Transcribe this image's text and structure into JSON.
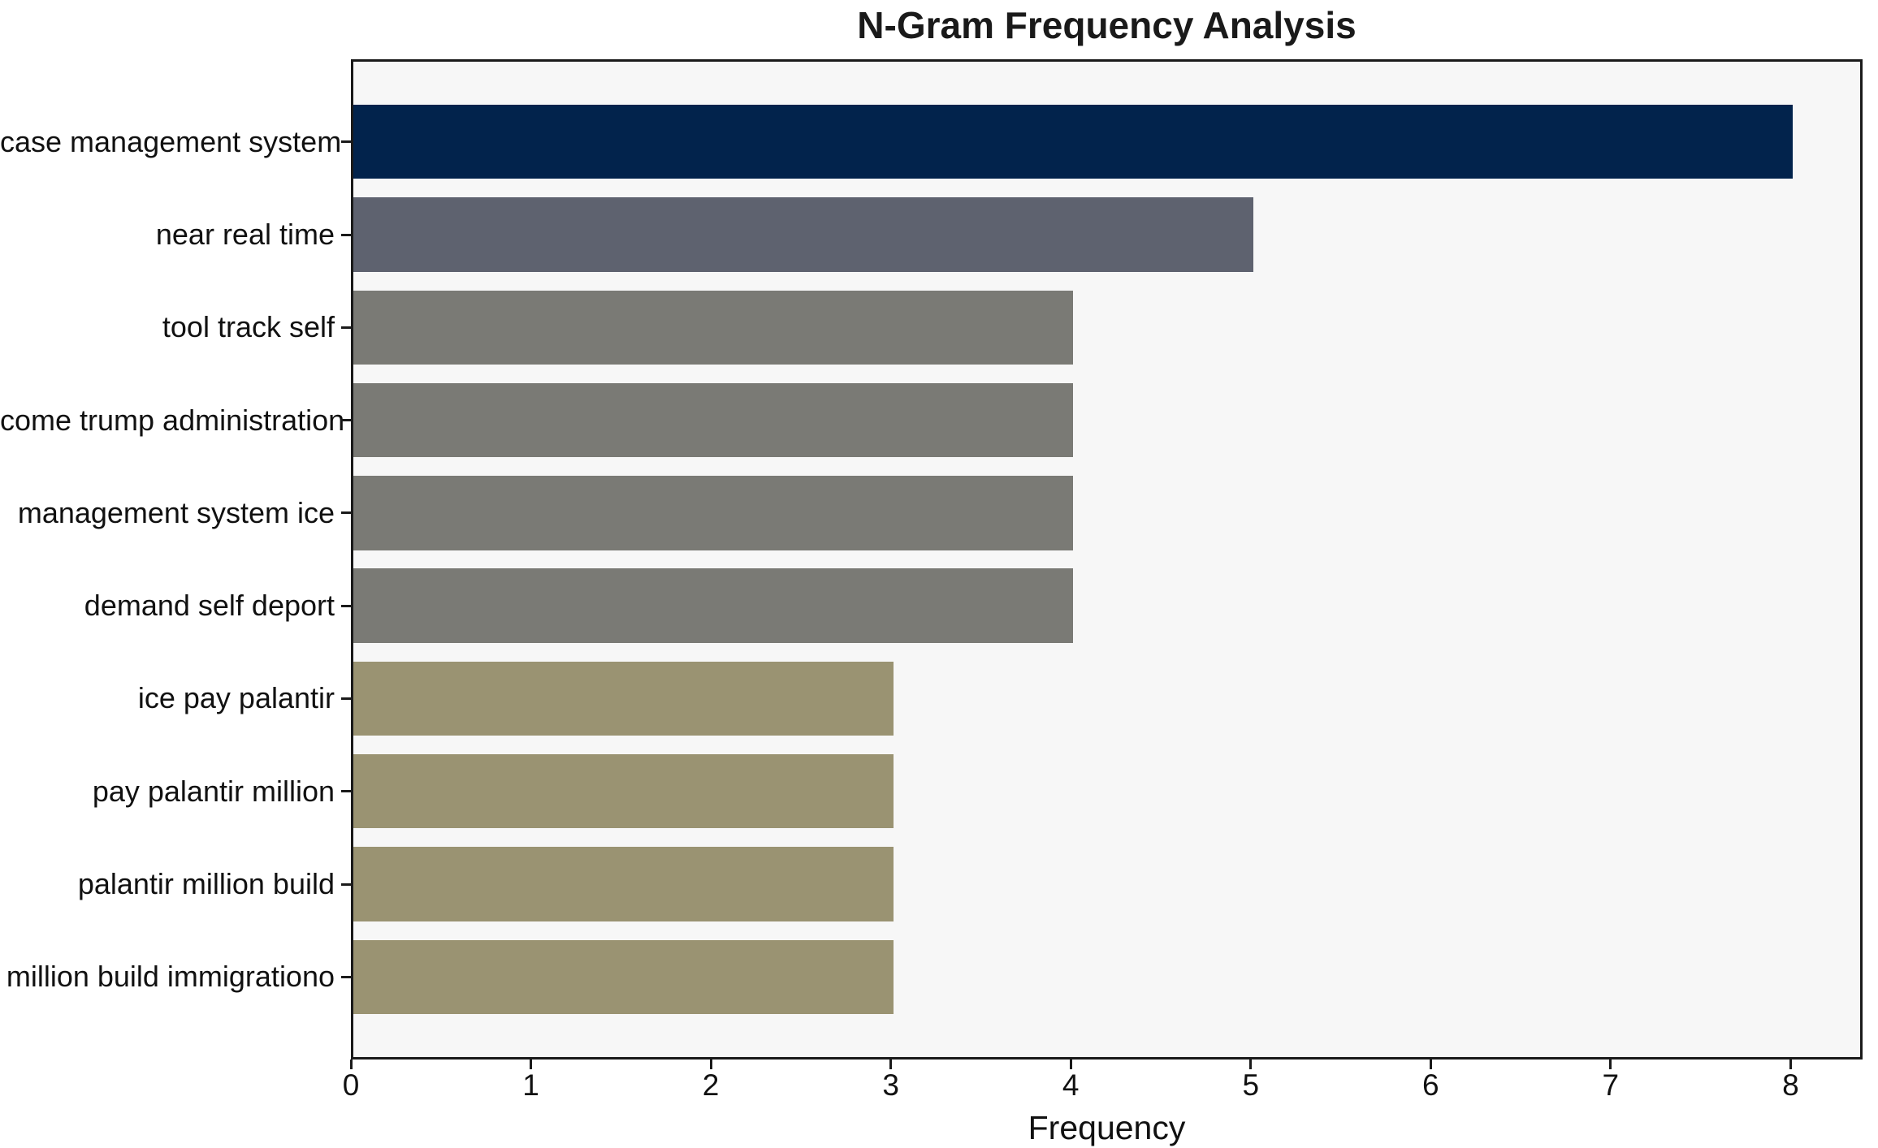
{
  "chart_data": {
    "type": "bar",
    "orientation": "horizontal",
    "title": "N-Gram Frequency Analysis",
    "xlabel": "Frequency",
    "ylabel": "",
    "categories": [
      "case management system",
      "near real time",
      "tool track self",
      "come trump administration",
      "management system ice",
      "demand self deport",
      "ice pay palantir",
      "pay palantir million",
      "palantir million build",
      "million build immigrationo"
    ],
    "values": [
      8,
      5,
      4,
      4,
      4,
      4,
      3,
      3,
      3,
      3
    ],
    "bar_colors": [
      "#02234c",
      "#5e626f",
      "#7a7a75",
      "#7a7a75",
      "#7a7a75",
      "#7a7a75",
      "#9a9372",
      "#9a9372",
      "#9a9372",
      "#9a9372"
    ],
    "xticks": [
      "0",
      "1",
      "2",
      "3",
      "4",
      "5",
      "6",
      "7",
      "8"
    ],
    "xlim": [
      0,
      8.4
    ],
    "grid": false,
    "legend": null,
    "plot_background": "#f7f7f7",
    "spine_color": "#1a1a1a"
  }
}
